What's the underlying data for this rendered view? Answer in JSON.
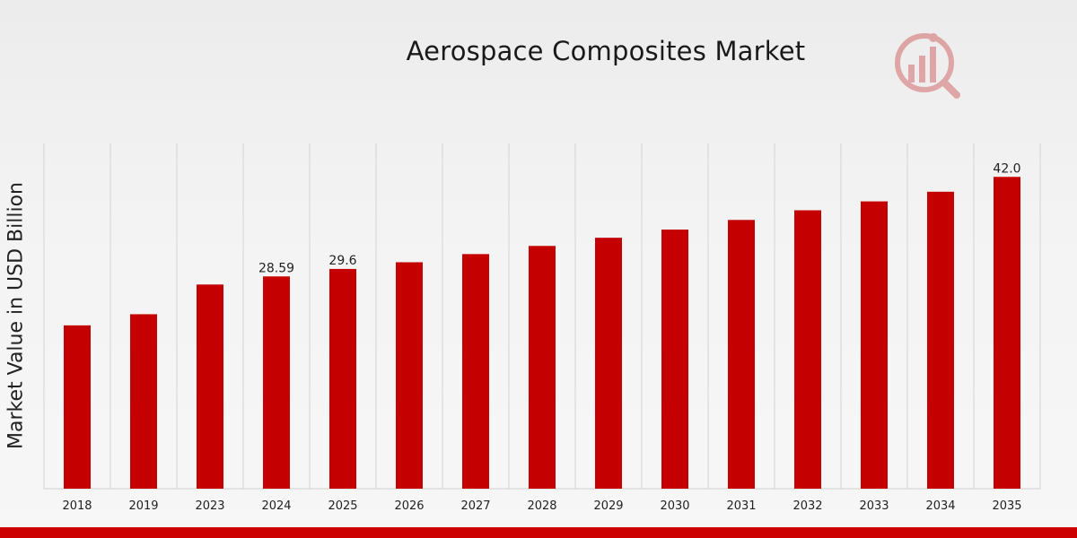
{
  "chart_data": {
    "type": "bar",
    "title": "Aerospace Composites Market",
    "ylabel": "Market Value in USD Billion",
    "xlabel": "",
    "categories": [
      "2018",
      "2019",
      "2023",
      "2024",
      "2025",
      "2026",
      "2027",
      "2028",
      "2029",
      "2030",
      "2031",
      "2032",
      "2033",
      "2034",
      "2035"
    ],
    "values": [
      22.0,
      23.5,
      27.5,
      28.59,
      29.6,
      30.5,
      31.6,
      32.7,
      33.8,
      34.9,
      36.2,
      37.5,
      38.7,
      40.0,
      42.0
    ],
    "data_labels": {
      "3": "28.59",
      "4": "29.6",
      "14": "42.0"
    },
    "ylim": [
      0,
      46.5
    ],
    "grid": "vertical",
    "bar_color": "#c40000",
    "legend": "none"
  },
  "colors": {
    "accent": "#cc0000",
    "bar": "#c40000",
    "logo": "#c02020"
  }
}
